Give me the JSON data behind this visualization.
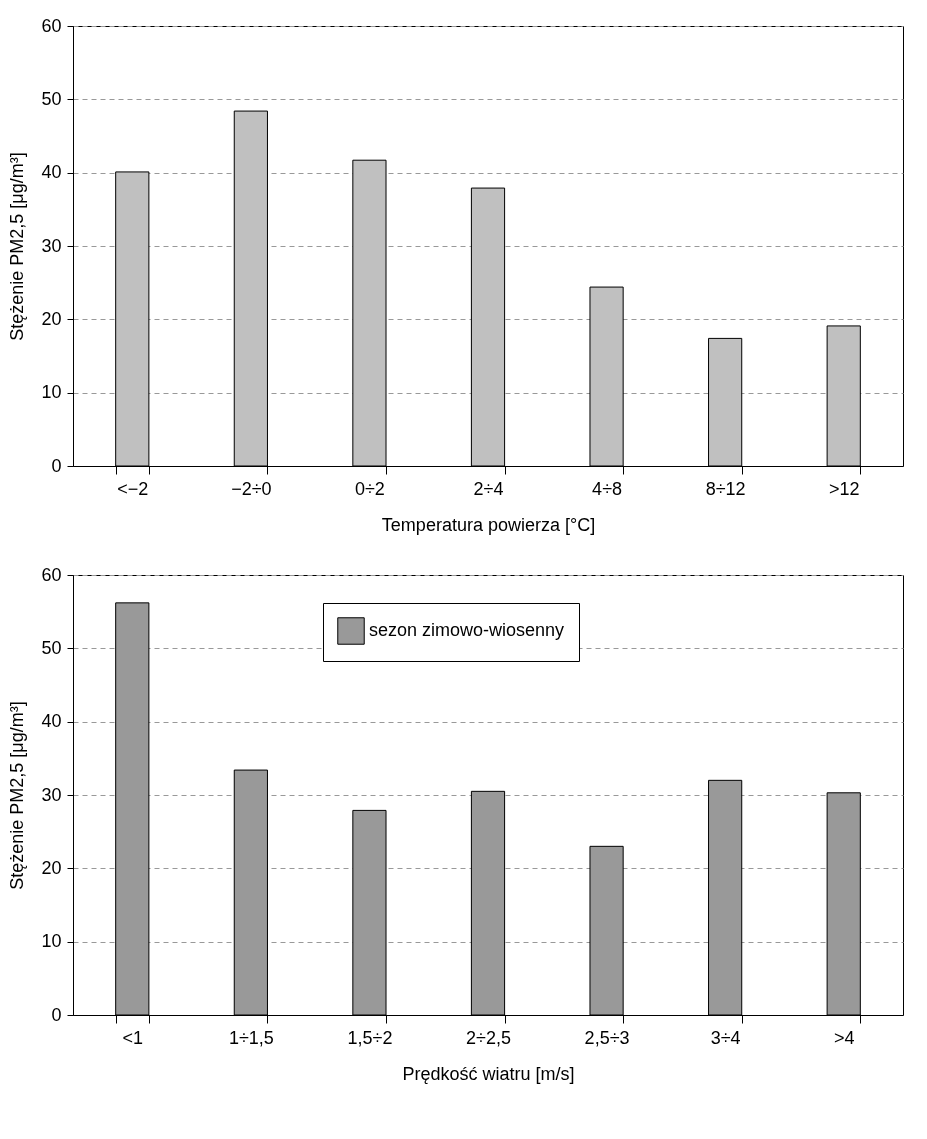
{
  "chart_data": [
    {
      "type": "bar",
      "xlabel": "Temperatura powierza [°C]",
      "ylabel": "Stężenie PM2,5 [μg/m³]",
      "categories": [
        "<−2",
        "−2÷0",
        "0÷2",
        "2÷4",
        "4÷8",
        "8÷12",
        ">12"
      ],
      "series": [
        {
          "color": "#c0c0c0",
          "values": [
            40.1,
            48.4,
            41.7,
            37.9,
            24.4,
            17.4,
            19.1
          ]
        }
      ],
      "ylim": [
        0,
        60
      ],
      "yticks": [
        0,
        10,
        20,
        30,
        40,
        50,
        60
      ],
      "grid": "y"
    },
    {
      "type": "bar",
      "xlabel": "Prędkość wiatru [m/s]",
      "ylabel": "Stężenie PM2,5 [μg/m³]",
      "categories": [
        "<1",
        "1÷1,5",
        "1,5÷2",
        "2÷2,5",
        "2,5÷3",
        "3÷4",
        ">4"
      ],
      "series": [
        {
          "name": "sezon zimowo-wiosenny",
          "color": "#999999",
          "values": [
            56.2,
            33.4,
            27.9,
            30.5,
            23.0,
            32.0,
            30.3
          ]
        }
      ],
      "ylim": [
        0,
        60
      ],
      "yticks": [
        0,
        10,
        20,
        30,
        40,
        50,
        60
      ],
      "grid": "y",
      "legend": "top"
    }
  ]
}
